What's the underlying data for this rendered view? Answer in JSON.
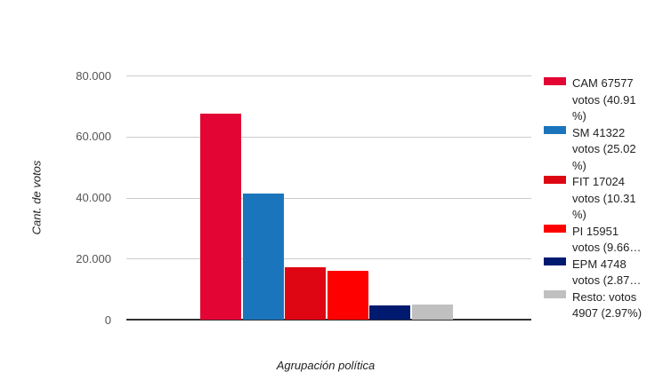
{
  "chart_data": {
    "type": "bar",
    "title": "",
    "xlabel": "Agrupación política",
    "ylabel": "Cant. de votos",
    "ylim": [
      0,
      80000
    ],
    "grid": true,
    "legend_position": "right",
    "yticks": [
      {
        "value": 0,
        "label": "0"
      },
      {
        "value": 20000,
        "label": "20.000"
      },
      {
        "value": 40000,
        "label": "40.000"
      },
      {
        "value": 60000,
        "label": "60.000"
      },
      {
        "value": 80000,
        "label": "80.000"
      }
    ],
    "series": [
      {
        "name": "CAM",
        "votes": 67577,
        "percent": 40.91,
        "color": "#e30634",
        "legend_lines": [
          "CAM 67577",
          "votos (40.91",
          "%)"
        ]
      },
      {
        "name": "SM",
        "votes": 41322,
        "percent": 25.02,
        "color": "#1b75bc",
        "legend_lines": [
          "SM 41322",
          "votos (25.02",
          "%)"
        ]
      },
      {
        "name": "FIT",
        "votes": 17024,
        "percent": 10.31,
        "color": "#de0613",
        "legend_lines": [
          "FIT 17024",
          "votos (10.31",
          "%)"
        ]
      },
      {
        "name": "PI",
        "votes": 15951,
        "percent": 9.66,
        "color": "#fe0000",
        "legend_lines": [
          "PI 15951",
          "votos (9.66…"
        ]
      },
      {
        "name": "EPM",
        "votes": 4748,
        "percent": 2.87,
        "color": "#001a70",
        "legend_lines": [
          "EPM 4748",
          "votos (2.87…"
        ]
      },
      {
        "name": "Resto",
        "votes": 4907,
        "percent": 2.97,
        "color": "#c0c0c0",
        "legend_lines": [
          "Resto: votos",
          "4907 (2.97%)"
        ]
      }
    ],
    "colors": {
      "grid": "#cccccc",
      "baseline": "#333333",
      "tick_label": "#555555",
      "axis_title": "#222222",
      "legend_text": "#222222",
      "background": "#ffffff"
    }
  }
}
